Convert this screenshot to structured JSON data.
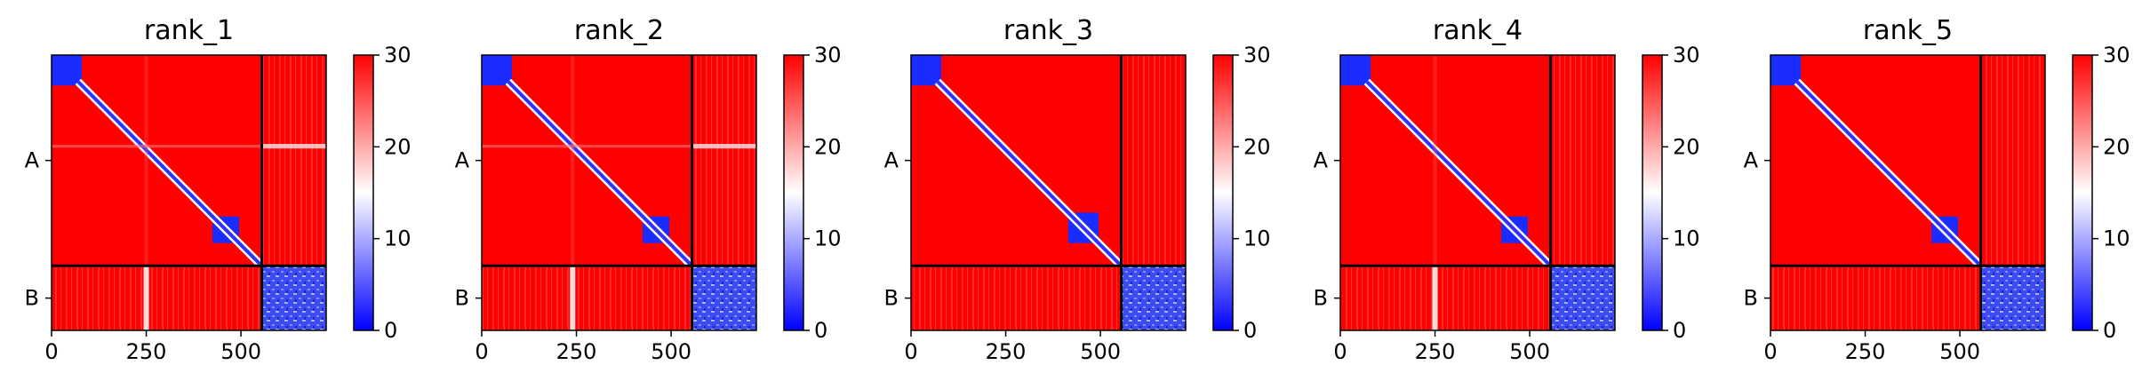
{
  "chart_data": [
    {
      "type": "heatmap",
      "title": "rank_1",
      "x_ticks": [
        "0",
        "250",
        "500"
      ],
      "x_tick_values": [
        0,
        250,
        500
      ],
      "y_ticks": [
        "A",
        "B"
      ],
      "chain_lengths": [
        555,
        170
      ],
      "xlim": [
        0,
        725
      ],
      "colorbar": {
        "ticks": [
          "0",
          "10",
          "20",
          "30"
        ],
        "tick_values": [
          0,
          10,
          20,
          30
        ],
        "range": [
          0,
          30
        ]
      },
      "low_error_blocks": [
        [
          0,
          80,
          0,
          80
        ],
        [
          425,
          495,
          425,
          495
        ],
        [
          555,
          725,
          555,
          725
        ]
      ],
      "horizontal_stripes_y": [
        240
      ],
      "vertical_stripes_x": [
        250
      ]
    },
    {
      "type": "heatmap",
      "title": "rank_2",
      "x_ticks": [
        "0",
        "250",
        "500"
      ],
      "x_tick_values": [
        0,
        250,
        500
      ],
      "y_ticks": [
        "A",
        "B"
      ],
      "chain_lengths": [
        555,
        170
      ],
      "xlim": [
        0,
        725
      ],
      "colorbar": {
        "ticks": [
          "0",
          "10",
          "20",
          "30"
        ],
        "tick_values": [
          0,
          10,
          20,
          30
        ],
        "range": [
          0,
          30
        ]
      },
      "low_error_blocks": [
        [
          0,
          80,
          0,
          80
        ],
        [
          425,
          495,
          425,
          495
        ],
        [
          555,
          725,
          555,
          725
        ]
      ],
      "horizontal_stripes_y": [
        240
      ],
      "vertical_stripes_x": [
        240
      ]
    },
    {
      "type": "heatmap",
      "title": "rank_3",
      "x_ticks": [
        "0",
        "250",
        "500"
      ],
      "x_tick_values": [
        0,
        250,
        500
      ],
      "y_ticks": [
        "A",
        "B"
      ],
      "chain_lengths": [
        555,
        170
      ],
      "xlim": [
        0,
        725
      ],
      "colorbar": {
        "ticks": [
          "0",
          "10",
          "20",
          "30"
        ],
        "tick_values": [
          0,
          10,
          20,
          30
        ],
        "range": [
          0,
          30
        ]
      },
      "low_error_blocks": [
        [
          0,
          80,
          0,
          80
        ],
        [
          415,
          495,
          415,
          495
        ],
        [
          555,
          725,
          555,
          725
        ]
      ],
      "horizontal_stripes_y": [],
      "vertical_stripes_x": []
    },
    {
      "type": "heatmap",
      "title": "rank_4",
      "x_ticks": [
        "0",
        "250",
        "500"
      ],
      "x_tick_values": [
        0,
        250,
        500
      ],
      "y_ticks": [
        "A",
        "B"
      ],
      "chain_lengths": [
        555,
        170
      ],
      "xlim": [
        0,
        725
      ],
      "colorbar": {
        "ticks": [
          "0",
          "10",
          "20",
          "30"
        ],
        "tick_values": [
          0,
          10,
          20,
          30
        ],
        "range": [
          0,
          30
        ]
      },
      "low_error_blocks": [
        [
          0,
          80,
          0,
          80
        ],
        [
          425,
          495,
          425,
          495
        ],
        [
          555,
          725,
          555,
          725
        ]
      ],
      "horizontal_stripes_y": [],
      "vertical_stripes_x": [
        250
      ]
    },
    {
      "type": "heatmap",
      "title": "rank_5",
      "x_ticks": [
        "0",
        "250",
        "500"
      ],
      "x_tick_values": [
        0,
        250,
        500
      ],
      "y_ticks": [
        "A",
        "B"
      ],
      "chain_lengths": [
        555,
        170
      ],
      "xlim": [
        0,
        725
      ],
      "colorbar": {
        "ticks": [
          "0",
          "10",
          "20",
          "30"
        ],
        "tick_values": [
          0,
          10,
          20,
          30
        ],
        "range": [
          0,
          30
        ]
      },
      "low_error_blocks": [
        [
          0,
          80,
          0,
          80
        ],
        [
          425,
          495,
          425,
          495
        ],
        [
          555,
          725,
          555,
          725
        ]
      ],
      "horizontal_stripes_y": [],
      "vertical_stripes_x": []
    }
  ],
  "colors": {
    "high": "#ff0000",
    "mid": "#ffffff",
    "low": "#0000ff",
    "divider": "#000000"
  }
}
